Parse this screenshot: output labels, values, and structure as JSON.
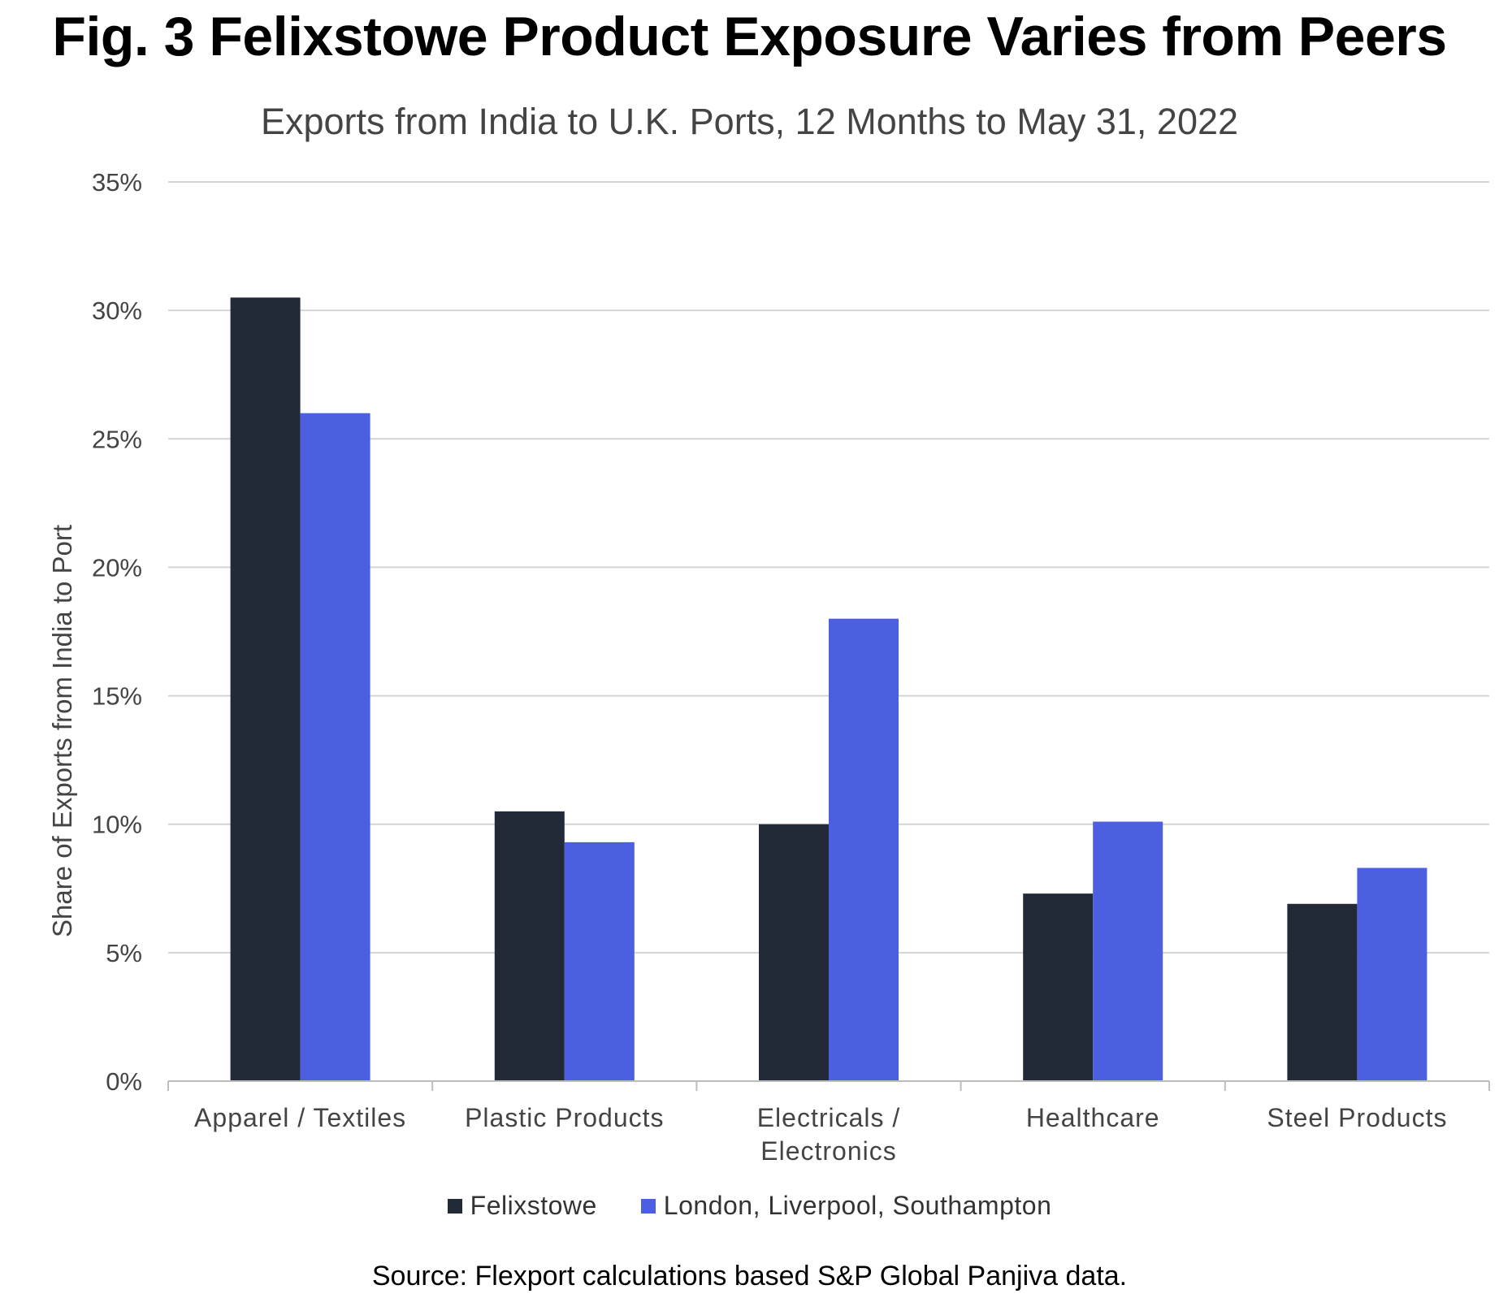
{
  "chart_data": {
    "type": "bar",
    "title": "Fig. 3 Felixstowe Product Exposure Varies from Peers",
    "subtitle": "Exports from India to U.K. Ports, 12 Months to May 31, 2022",
    "ylabel": "Share of Exports from India to Port",
    "xlabel": "",
    "ylim": [
      0,
      35
    ],
    "yticks": [
      "0%",
      "5%",
      "10%",
      "15%",
      "20%",
      "25%",
      "30%",
      "35%"
    ],
    "ytick_values": [
      0,
      5,
      10,
      15,
      20,
      25,
      30,
      35
    ],
    "categories": [
      [
        "Apparel / Textiles"
      ],
      [
        "Plastic Products"
      ],
      [
        "Electricals /",
        "Electronics"
      ],
      [
        "Healthcare"
      ],
      [
        "Steel Products"
      ]
    ],
    "series": [
      {
        "name": "Felixstowe",
        "color": "#222a38",
        "values": [
          30.5,
          10.5,
          10.0,
          7.3,
          6.9
        ]
      },
      {
        "name": "London, Liverpool, Southampton",
        "color": "#4b5fe0",
        "values": [
          26.0,
          9.3,
          18.0,
          10.1,
          8.3
        ]
      }
    ],
    "grid": true,
    "legend_position": "bottom",
    "source": "Source: Flexport calculations based S&P Global Panjiva data."
  }
}
